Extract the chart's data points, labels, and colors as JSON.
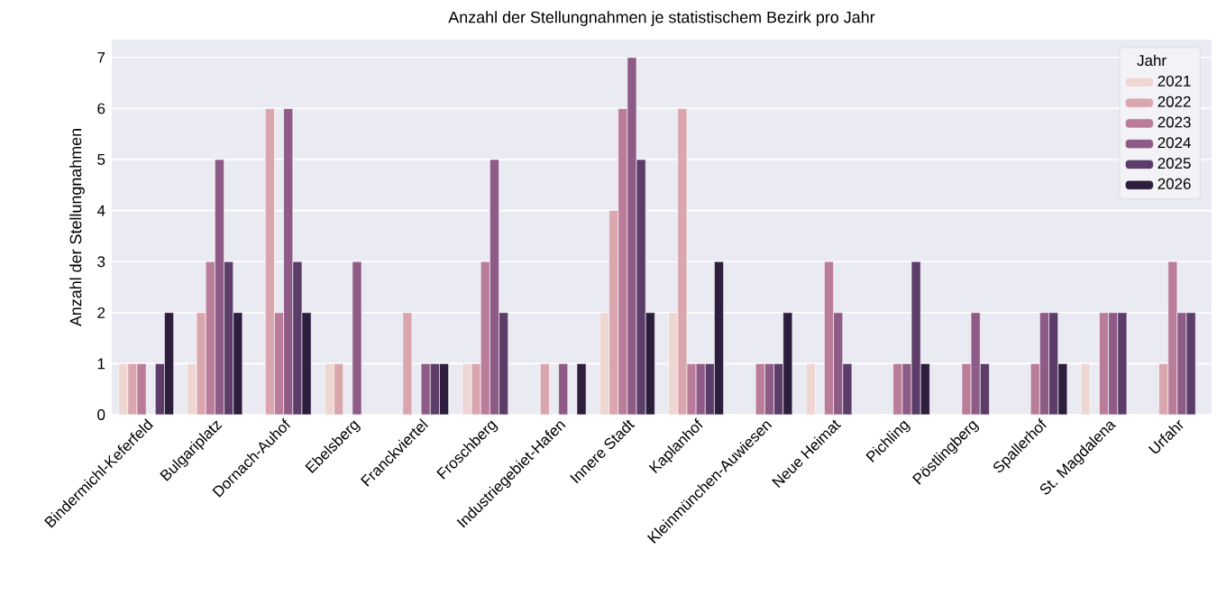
{
  "chart_data": {
    "type": "bar",
    "title": "Anzahl der Stellungnahmen je statistischem Bezirk pro Jahr",
    "ylabel": "Anzahl der Stellungnahmen",
    "legend_title": "Jahr",
    "categories": [
      "Bindermichl-Keferfeld",
      "Bulgariplatz",
      "Dornach-Auhof",
      "Ebelsberg",
      "Franckviertel",
      "Froschberg",
      "Industriegebiet-Hafen",
      "Innere Stadt",
      "Kaplanhof",
      "Kleinmünchen-Auwiesen",
      "Neue Heimat",
      "Pichling",
      "Pöstlingberg",
      "Spallerhof",
      "St. Magdalena",
      "Urfahr"
    ],
    "series": [
      {
        "name": "2021",
        "color": "#eed6d3",
        "values": [
          1,
          1,
          null,
          1,
          null,
          1,
          null,
          2,
          2,
          null,
          1,
          null,
          null,
          null,
          1,
          null
        ]
      },
      {
        "name": "2022",
        "color": "#d9a6ad",
        "values": [
          1,
          2,
          6,
          1,
          2,
          1,
          1,
          4,
          6,
          null,
          null,
          null,
          null,
          null,
          null,
          1
        ]
      },
      {
        "name": "2023",
        "color": "#b97c99",
        "values": [
          1,
          3,
          2,
          null,
          null,
          3,
          null,
          6,
          1,
          1,
          3,
          1,
          1,
          1,
          2,
          3
        ]
      },
      {
        "name": "2024",
        "color": "#8e5b87",
        "values": [
          null,
          5,
          6,
          3,
          1,
          5,
          1,
          7,
          1,
          1,
          2,
          1,
          2,
          2,
          2,
          2
        ]
      },
      {
        "name": "2025",
        "color": "#5c3c69",
        "values": [
          1,
          3,
          3,
          null,
          1,
          2,
          null,
          5,
          1,
          1,
          1,
          3,
          1,
          2,
          2,
          2
        ]
      },
      {
        "name": "2026",
        "color": "#2d1e3e",
        "values": [
          2,
          2,
          2,
          null,
          1,
          null,
          1,
          2,
          3,
          2,
          null,
          1,
          null,
          1,
          null,
          null
        ]
      }
    ],
    "ylim": [
      0,
      7.35
    ],
    "yticks": [
      0,
      1,
      2,
      3,
      4,
      5,
      6,
      7
    ],
    "grid": "y",
    "legend": "top right"
  }
}
